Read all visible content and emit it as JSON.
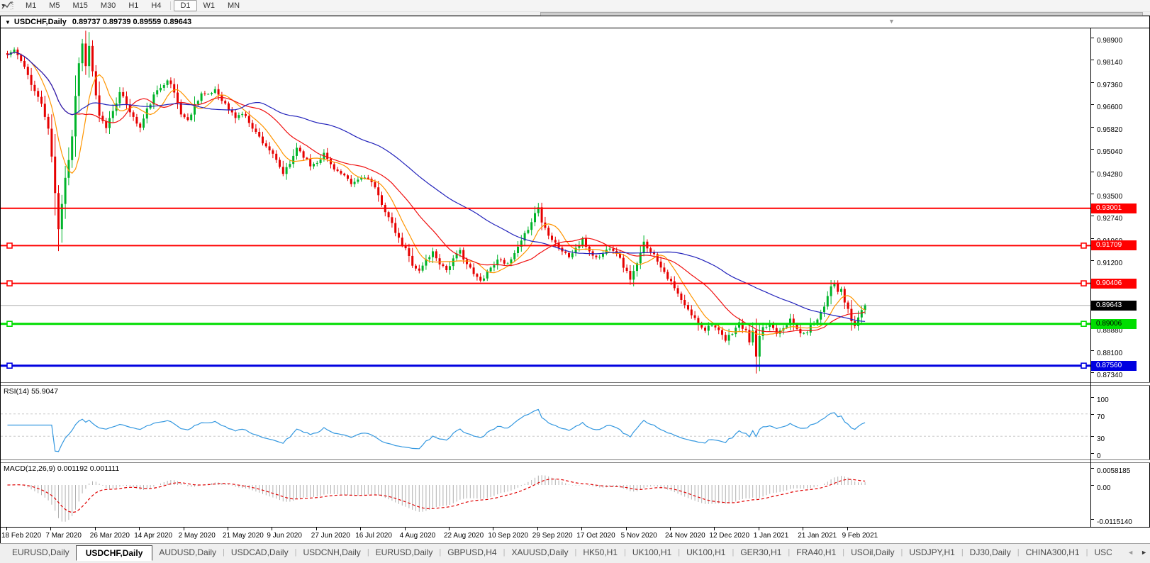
{
  "toolbar": {
    "timeframes": [
      "M1",
      "M5",
      "M15",
      "M30",
      "H1",
      "H4",
      "D1",
      "W1",
      "MN"
    ],
    "active_timeframe": "D1",
    "divider_before": "D1"
  },
  "window_title": {
    "caret": "▼",
    "symbol_text": "USDCHF,Daily",
    "ohlc_text": "0.89737 0.89739 0.89559 0.89643",
    "shift_marker": "▼"
  },
  "chart_data": {
    "type": "candlestick",
    "symbol": "USDCHF",
    "period": "Daily",
    "title": "USDCHF,Daily",
    "ohlc": {
      "open": 0.89737,
      "high": 0.89739,
      "low": 0.89559,
      "close": 0.89643
    },
    "bar_count": 253,
    "bars_per_tick": 13,
    "price_range": {
      "top": 0.99243,
      "bottom": 0.86989
    },
    "up_color": "#00b42a",
    "down_color": "#e60000",
    "current_price": {
      "value": 0.89643,
      "label": "0.89643",
      "line_color": "#b0b0b0",
      "badge_bg": "#000000",
      "badge_text": "#ffffff"
    },
    "price_ticks": [
      "0.98900",
      "0.98140",
      "0.97360",
      "0.96600",
      "0.95820",
      "0.95040",
      "0.94280",
      "0.93500",
      "0.92740",
      "0.91960",
      "0.91200",
      "0.88880",
      "0.88100",
      "0.87340"
    ],
    "date_ticks": [
      "18 Feb 2020",
      "7 Mar 2020",
      "26 Mar 2020",
      "14 Apr 2020",
      "2 May 2020",
      "21 May 2020",
      "9 Jun 2020",
      "27 Jun 2020",
      "16 Jul 2020",
      "4 Aug 2020",
      "22 Aug 2020",
      "10 Sep 2020",
      "29 Sep 2020",
      "17 Oct 2020",
      "5 Nov 2020",
      "24 Nov 2020",
      "12 Dec 2020",
      "1 Jan 2021",
      "21 Jan 2021",
      "9 Feb 2021"
    ],
    "moving_averages": [
      {
        "period": 8,
        "color": "#ff9500"
      },
      {
        "period": 21,
        "color": "#f01010"
      },
      {
        "period": 55,
        "color": "#2222bb"
      }
    ],
    "hlines": [
      {
        "price": 0.93001,
        "label": "0.93001",
        "color": "#ff0000",
        "width": 2,
        "handles": false,
        "text_color": "#ffffff"
      },
      {
        "price": 0.91709,
        "label": "0.91709",
        "color": "#ff0000",
        "width": 2,
        "handles": true,
        "text_color": "#ffffff"
      },
      {
        "price": 0.90406,
        "label": "0.90406",
        "color": "#ff0000",
        "width": 2,
        "handles": true,
        "text_color": "#ffffff"
      },
      {
        "price": 0.89006,
        "label": "0.89006",
        "color": "#00dd00",
        "width": 3,
        "handles": true,
        "text_color": "#000000"
      },
      {
        "price": 0.8756,
        "label": "0.87560",
        "color": "#0000e0",
        "width": 3,
        "handles": true,
        "text_color": "#ffffff"
      }
    ],
    "close_anchors": [
      [
        0,
        0.983
      ],
      [
        2,
        0.9848
      ],
      [
        4,
        0.9808
      ],
      [
        6,
        0.976
      ],
      [
        8,
        0.9705
      ],
      [
        10,
        0.9662
      ],
      [
        12,
        0.957
      ],
      [
        13,
        0.948
      ],
      [
        14,
        0.935
      ],
      [
        15,
        0.9225
      ],
      [
        16,
        0.932
      ],
      [
        17,
        0.941
      ],
      [
        18,
        0.947
      ],
      [
        19,
        0.955
      ],
      [
        20,
        0.969
      ],
      [
        21,
        0.98
      ],
      [
        22,
        0.9875
      ],
      [
        23,
        0.979
      ],
      [
        24,
        0.986
      ],
      [
        25,
        0.9775
      ],
      [
        26,
        0.9685
      ],
      [
        27,
        0.9615
      ],
      [
        29,
        0.958
      ],
      [
        31,
        0.964
      ],
      [
        33,
        0.9698
      ],
      [
        35,
        0.9662
      ],
      [
        37,
        0.9612
      ],
      [
        39,
        0.9578
      ],
      [
        41,
        0.964
      ],
      [
        43,
        0.9688
      ],
      [
        45,
        0.9718
      ],
      [
        47,
        0.9748
      ],
      [
        49,
        0.97
      ],
      [
        51,
        0.9628
      ],
      [
        53,
        0.9602
      ],
      [
        55,
        0.9658
      ],
      [
        57,
        0.9698
      ],
      [
        59,
        0.9688
      ],
      [
        61,
        0.9712
      ],
      [
        63,
        0.9678
      ],
      [
        65,
        0.964
      ],
      [
        67,
        0.9615
      ],
      [
        69,
        0.9628
      ],
      [
        71,
        0.96
      ],
      [
        73,
        0.9562
      ],
      [
        75,
        0.953
      ],
      [
        77,
        0.9502
      ],
      [
        79,
        0.9462
      ],
      [
        81,
        0.942
      ],
      [
        83,
        0.9452
      ],
      [
        85,
        0.9512
      ],
      [
        87,
        0.9482
      ],
      [
        89,
        0.9448
      ],
      [
        91,
        0.9462
      ],
      [
        93,
        0.9488
      ],
      [
        95,
        0.9452
      ],
      [
        97,
        0.9428
      ],
      [
        99,
        0.9408
      ],
      [
        101,
        0.9382
      ],
      [
        103,
        0.9398
      ],
      [
        105,
        0.9412
      ],
      [
        107,
        0.9388
      ],
      [
        109,
        0.9342
      ],
      [
        111,
        0.9292
      ],
      [
        113,
        0.9242
      ],
      [
        115,
        0.9192
      ],
      [
        117,
        0.9158
      ],
      [
        119,
        0.9108
      ],
      [
        121,
        0.9082
      ],
      [
        123,
        0.9122
      ],
      [
        125,
        0.9148
      ],
      [
        127,
        0.9112
      ],
      [
        129,
        0.9088
      ],
      [
        131,
        0.9122
      ],
      [
        133,
        0.9152
      ],
      [
        135,
        0.9108
      ],
      [
        137,
        0.9072
      ],
      [
        139,
        0.9048
      ],
      [
        141,
        0.9082
      ],
      [
        143,
        0.9108
      ],
      [
        145,
        0.9128
      ],
      [
        147,
        0.9102
      ],
      [
        149,
        0.9142
      ],
      [
        151,
        0.9182
      ],
      [
        153,
        0.9232
      ],
      [
        155,
        0.9282
      ],
      [
        156,
        0.9305
      ],
      [
        157,
        0.9252
      ],
      [
        159,
        0.9212
      ],
      [
        161,
        0.9182
      ],
      [
        163,
        0.9152
      ],
      [
        165,
        0.9132
      ],
      [
        167,
        0.9162
      ],
      [
        169,
        0.9188
      ],
      [
        171,
        0.9152
      ],
      [
        173,
        0.9128
      ],
      [
        175,
        0.9142
      ],
      [
        177,
        0.9168
      ],
      [
        179,
        0.9148
      ],
      [
        181,
        0.91
      ],
      [
        183,
        0.9058
      ],
      [
        185,
        0.9105
      ],
      [
        187,
        0.918
      ],
      [
        189,
        0.9155
      ],
      [
        191,
        0.912
      ],
      [
        193,
        0.9082
      ],
      [
        195,
        0.9042
      ],
      [
        197,
        0.9002
      ],
      [
        199,
        0.8962
      ],
      [
        201,
        0.8932
      ],
      [
        203,
        0.8902
      ],
      [
        205,
        0.8882
      ],
      [
        207,
        0.8902
      ],
      [
        209,
        0.8872
      ],
      [
        211,
        0.8842
      ],
      [
        213,
        0.8872
      ],
      [
        215,
        0.8902
      ],
      [
        217,
        0.8872
      ],
      [
        218,
        0.8842
      ],
      [
        219,
        0.8872
      ],
      [
        220,
        0.8788
      ],
      [
        221,
        0.8852
      ],
      [
        222,
        0.8882
      ],
      [
        224,
        0.8902
      ],
      [
        226,
        0.8872
      ],
      [
        228,
        0.8892
      ],
      [
        230,
        0.8912
      ],
      [
        232,
        0.8882
      ],
      [
        234,
        0.8862
      ],
      [
        236,
        0.8892
      ],
      [
        238,
        0.8922
      ],
      [
        240,
        0.8962
      ],
      [
        241,
        0.9002
      ],
      [
        242,
        0.9032
      ],
      [
        243,
        0.9045
      ],
      [
        244,
        0.9005
      ],
      [
        245,
        0.902
      ],
      [
        246,
        0.8975
      ],
      [
        247,
        0.8945
      ],
      [
        248,
        0.8912
      ],
      [
        249,
        0.8892
      ],
      [
        250,
        0.8922
      ],
      [
        251,
        0.8952
      ],
      [
        252,
        0.89643
      ]
    ],
    "indicators": [
      {
        "id": "rsi",
        "label": "RSI(14) 55.9047",
        "value": 55.9047,
        "levels": [
          "100",
          "70",
          "30",
          "0"
        ],
        "dashed_levels": [
          70,
          30
        ],
        "line_color": "#3498e0"
      },
      {
        "id": "macd",
        "label": "MACD(12,26,9) 0.001192 0.001111",
        "main": 0.001192,
        "signal": 0.001111,
        "axis_labels": [
          "0.0058185",
          "0.00",
          "-0.0115140"
        ],
        "histogram_color": "#b0b0b0",
        "signal_color": "#e00000"
      }
    ]
  },
  "tabs": {
    "items": [
      "EURUSD,Daily",
      "USDCHF,Daily",
      "AUDUSD,Daily",
      "USDCAD,Daily",
      "USDCNH,Daily",
      "EURUSD,Daily",
      "GBPUSD,H4",
      "XAUUSD,Daily",
      "HK50,H1",
      "UK100,H1",
      "UK100,H1",
      "GER30,H1",
      "FRA40,H1",
      "USOil,Daily",
      "USDJPY,H1",
      "DJ30,Daily",
      "CHINA300,H1",
      "USC"
    ],
    "active_index": 1,
    "scroll_left": "◄",
    "scroll_right": "►"
  }
}
